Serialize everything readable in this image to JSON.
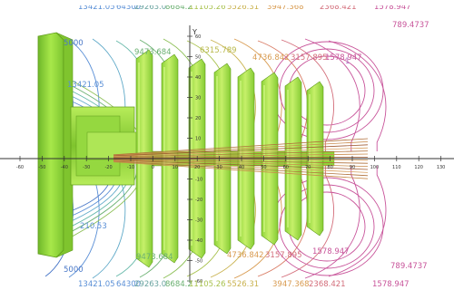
{
  "axis": {
    "y_label": "Y"
  },
  "contour_labels": {
    "top": [
      {
        "text": "13421.05",
        "color": "#5a8fd6"
      },
      {
        "text": "64300",
        "color": "#5a8fd6"
      },
      {
        "text": "29263.0",
        "color": "#6aa4a0"
      },
      {
        "text": "8684.2",
        "color": "#6ab070"
      },
      {
        "text": "11105.26",
        "color": "#a9c24f"
      },
      {
        "text": "5526.31",
        "color": "#c9b24f"
      },
      {
        "text": "3947.368",
        "color": "#d89a4f"
      },
      {
        "text": "2368.421",
        "color": "#d36d7a"
      },
      {
        "text": "1578.947",
        "color": "#c8549a"
      },
      {
        "text": "789.4737",
        "color": "#c8549a"
      }
    ],
    "upper_inner": [
      {
        "text": "5000",
        "color": "#4a78c8"
      },
      {
        "text": "13421.05",
        "color": "#5a8fd6"
      },
      {
        "text": "9473.684",
        "color": "#6ab070"
      },
      {
        "text": "6315.789",
        "color": "#b8b84a"
      },
      {
        "text": "4736.842",
        "color": "#d89a4f"
      },
      {
        "text": "3157.895",
        "color": "#d36d7a"
      },
      {
        "text": "1578.947",
        "color": "#c8549a"
      },
      {
        "text": "1",
        "color": "#b06fc0"
      }
    ],
    "lower_inner": [
      {
        "text": "5000",
        "color": "#4a78c8"
      },
      {
        "text": "210.53",
        "color": "#5a8fd6"
      },
      {
        "text": "9473.684",
        "color": "#6ab070"
      },
      {
        "text": "4736.842",
        "color": "#d89a4f"
      },
      {
        "text": "3157.895",
        "color": "#d36d7a"
      },
      {
        "text": "1578.947",
        "color": "#c8549a"
      }
    ],
    "bottom": [
      {
        "text": "13421.05",
        "color": "#5a8fd6"
      },
      {
        "text": "64300",
        "color": "#5a8fd6"
      },
      {
        "text": "29263.0",
        "color": "#6aa4a0"
      },
      {
        "text": "8684.2",
        "color": "#6ab070"
      },
      {
        "text": "11105.26",
        "color": "#a9c24f"
      },
      {
        "text": "5526.31",
        "color": "#c9b24f"
      },
      {
        "text": "3947.368",
        "color": "#d89a4f"
      },
      {
        "text": "2368.421",
        "color": "#d36d7a"
      },
      {
        "text": "1578.947",
        "color": "#c8549a"
      },
      {
        "text": "789.4737",
        "color": "#c8549a"
      }
    ]
  },
  "x_ticks": [
    "-60",
    "-50",
    "-40",
    "-30",
    "-20",
    "-10",
    "0",
    "10",
    "20",
    "30",
    "40",
    "50",
    "60",
    "70",
    "80",
    "90",
    "100",
    "110",
    "120",
    "130"
  ],
  "y_ticks": [
    "60",
    "50",
    "40",
    "30",
    "20",
    "10",
    "-10",
    "-20",
    "-30",
    "-40",
    "-50",
    "-60"
  ],
  "colors": {
    "body_green": "#9ee03a",
    "body_dark": "#5f9b1a",
    "body_light": "#c9f26a",
    "axis": "#333333",
    "rays": "#b0703a"
  }
}
